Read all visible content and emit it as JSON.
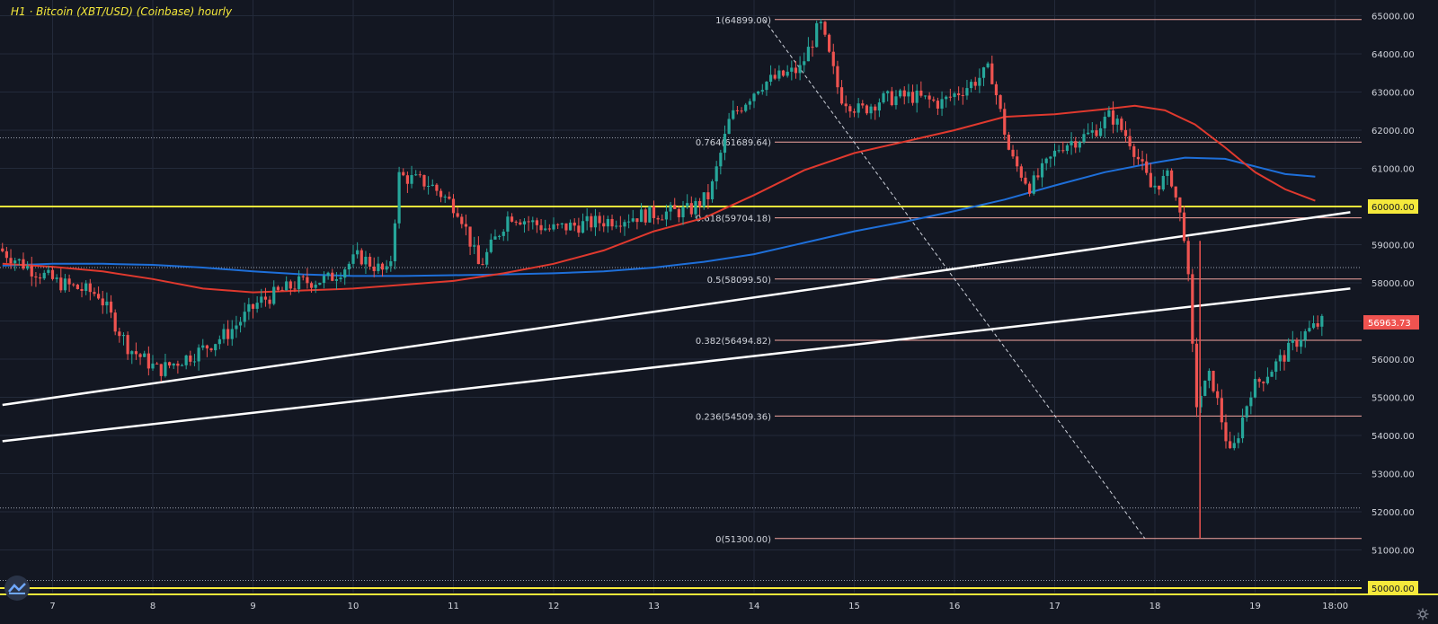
{
  "title": "H1 · Bitcoin (XBT/USD) (Coinbase) hourly",
  "colors": {
    "background": "#131722",
    "grid": "#232a3a",
    "up_candle": "#26a69a",
    "down_candle": "#ef5350",
    "fib_line": "#f4a6a0",
    "ma_red": "#e0392e",
    "ma_blue": "#1e6fd9",
    "trendline": "#ffffff",
    "level_yellow": "#f5e93b",
    "axis_text": "#d1d4dc",
    "title": "#f5e93b"
  },
  "icons": {
    "logo": "tradingview-logo-icon",
    "settings": "gear-icon"
  },
  "chart_data": {
    "type": "candlestick",
    "x_ticks": [
      "7",
      "8",
      "9",
      "10",
      "11",
      "12",
      "13",
      "14",
      "15",
      "16",
      "17",
      "18",
      "19",
      "18:00"
    ],
    "y_ticks": [
      "65000.00",
      "64000.00",
      "63000.00",
      "62000.00",
      "61000.00",
      "60000.00",
      "59000.00",
      "58000.00",
      "57000.00",
      "56000.00",
      "55000.00",
      "54000.00",
      "53000.00",
      "52000.00",
      "51000.00",
      "50000.00"
    ],
    "ylim": [
      49800,
      65400
    ],
    "xlim": [
      6.5,
      19.95
    ],
    "current_price": "56963.73",
    "fib_levels": [
      {
        "label": "1(64899.00)",
        "price": 64899
      },
      {
        "label": "0.764(61689.64)",
        "price": 61689.64
      },
      {
        "label": "0.618(59704.18)",
        "price": 59704.18
      },
      {
        "label": "0.5(58099.50)",
        "price": 58099.5
      },
      {
        "label": "0.382(56494.82)",
        "price": 56494.82
      },
      {
        "label": "0.236(54509.36)",
        "price": 54509.36
      },
      {
        "label": "0(51300.00)",
        "price": 51300
      }
    ],
    "horizontal_levels": [
      {
        "label": "60000.00",
        "price": 60000,
        "style": "yellow"
      },
      {
        "label": "50000.00",
        "price": 50000,
        "style": "yellow"
      },
      {
        "price": 61800,
        "style": "dotted"
      },
      {
        "price": 58400,
        "style": "dotted"
      },
      {
        "price": 52100,
        "style": "dotted"
      },
      {
        "price": 50200,
        "style": "dotted"
      }
    ],
    "trendlines": [
      {
        "from": [
          6.5,
          54800
        ],
        "to": [
          19.95,
          59850
        ]
      },
      {
        "from": [
          6.5,
          53850
        ],
        "to": [
          19.95,
          57850
        ]
      }
    ],
    "fib_diagonal": {
      "from": [
        14.1,
        64899
      ],
      "to": [
        17.9,
        51300
      ]
    },
    "ma_red": {
      "x": [
        6.5,
        7.0,
        7.5,
        8.0,
        8.5,
        9.0,
        9.5,
        10.0,
        10.5,
        11.0,
        11.5,
        12.0,
        12.5,
        13.0,
        13.5,
        14.0,
        14.5,
        15.0,
        15.5,
        16.0,
        16.5,
        17.0,
        17.5,
        17.8,
        18.1,
        18.4,
        18.7,
        19.0,
        19.3,
        19.6
      ],
      "y": [
        58500,
        58420,
        58300,
        58100,
        57850,
        57750,
        57800,
        57850,
        57950,
        58050,
        58250,
        58500,
        58850,
        59350,
        59700,
        60300,
        60950,
        61400,
        61700,
        62000,
        62350,
        62420,
        62550,
        62640,
        62520,
        62150,
        61550,
        60900,
        60450,
        60150
      ]
    },
    "ma_blue": {
      "x": [
        6.5,
        7.0,
        7.5,
        8.0,
        8.5,
        9.0,
        9.5,
        10.0,
        10.5,
        11.0,
        11.5,
        12.0,
        12.5,
        13.0,
        13.5,
        14.0,
        14.5,
        15.0,
        15.5,
        16.0,
        16.5,
        17.0,
        17.5,
        18.0,
        18.3,
        18.7,
        19.0,
        19.3,
        19.6
      ],
      "y": [
        58450,
        58500,
        58500,
        58470,
        58400,
        58300,
        58220,
        58180,
        58180,
        58200,
        58220,
        58250,
        58300,
        58400,
        58550,
        58750,
        59050,
        59350,
        59600,
        59880,
        60180,
        60550,
        60900,
        61150,
        61280,
        61250,
        61050,
        60850,
        60780
      ]
    },
    "price_path": {
      "x": [
        6.5,
        6.8,
        7.1,
        7.5,
        7.8,
        8.1,
        8.5,
        8.8,
        9.1,
        9.5,
        9.8,
        10.1,
        10.4,
        10.5,
        10.8,
        11.1,
        11.3,
        11.6,
        12.0,
        12.5,
        13.0,
        13.4,
        13.6,
        13.8,
        14.1,
        14.5,
        14.7,
        14.9,
        15.1,
        15.3,
        15.6,
        15.9,
        16.2,
        16.4,
        16.6,
        16.8,
        17.1,
        17.4,
        17.6,
        17.8,
        18.0,
        18.2,
        18.35,
        18.45,
        18.6,
        18.8,
        19.0,
        19.3,
        19.5,
        19.7
      ],
      "y": [
        58900,
        58400,
        58000,
        57700,
        56300,
        55700,
        56200,
        56700,
        57500,
        58000,
        58100,
        58700,
        58200,
        60800,
        60600,
        59900,
        58400,
        59800,
        59400,
        59600,
        59800,
        59900,
        60300,
        62300,
        63200,
        63600,
        64800,
        62900,
        62500,
        62800,
        62900,
        62700,
        63200,
        63600,
        61300,
        60500,
        61600,
        61900,
        62400,
        61700,
        60500,
        60800,
        59100,
        54800,
        55600,
        53400,
        55200,
        56000,
        56600,
        56960
      ]
    }
  }
}
